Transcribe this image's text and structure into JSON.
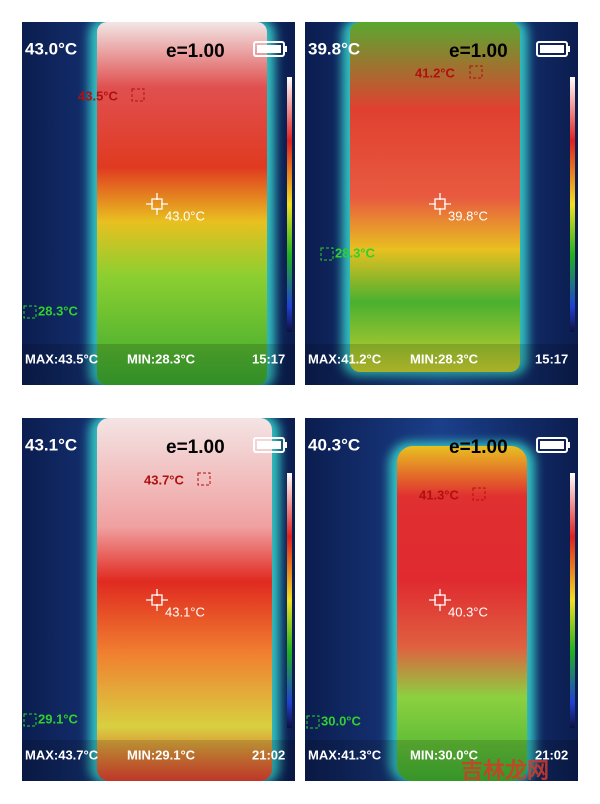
{
  "panels": [
    {
      "temp": "43.0°C",
      "emissivity": "e=1.00",
      "hot_label": "43.5°C",
      "center_label": "43.0°C",
      "cold_label": "28.3°C",
      "max": "MAX:43.5°C",
      "min": "MIN:28.3°C",
      "time": "15:17"
    },
    {
      "temp": "39.8°C",
      "emissivity": "e=1.00",
      "hot_label": "41.2°C",
      "center_label": "39.8°C",
      "cold_label": "28.3°C",
      "max": "MAX:41.2°C",
      "min": "MIN:28.3°C",
      "time": "15:17"
    },
    {
      "temp": "43.1°C",
      "emissivity": "e=1.00",
      "hot_label": "43.7°C",
      "center_label": "43.1°C",
      "cold_label": "29.1°C",
      "max": "MAX:43.7°C",
      "min": "MIN:29.1°C",
      "time": "21:02"
    },
    {
      "temp": "40.3°C",
      "emissivity": "e=1.00",
      "hot_label": "41.3°C",
      "center_label": "40.3°C",
      "cold_label": "30.0°C",
      "max": "MAX:41.3°C",
      "min": "MIN:30.0°C",
      "time": "21:02"
    }
  ],
  "watermark": "吉林龙网"
}
